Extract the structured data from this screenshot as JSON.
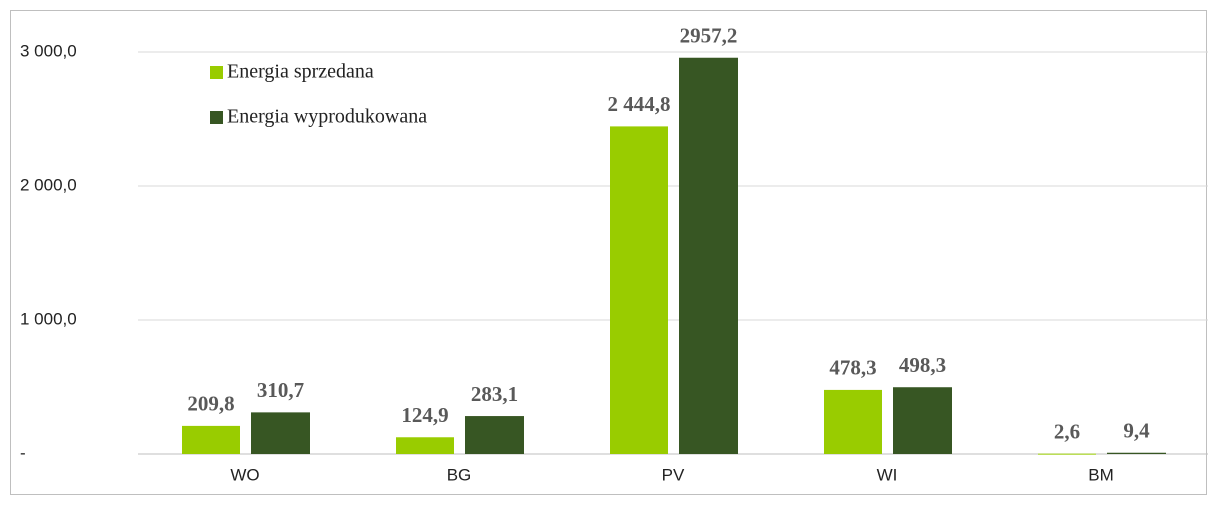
{
  "chart_data": {
    "type": "bar",
    "categories": [
      "WO",
      "BG",
      "PV",
      "WI",
      "BM"
    ],
    "series": [
      {
        "name": "Energia sprzedana",
        "color": "#99cc00",
        "values": [
          209.8,
          124.9,
          2444.8,
          478.3,
          2.6
        ],
        "value_labels": [
          "209,8",
          "124,9",
          "2 444,8",
          "478,3",
          "2,6"
        ]
      },
      {
        "name": "Energia wyprodukowana",
        "color": "#375623",
        "values": [
          310.7,
          283.1,
          2957.2,
          498.3,
          9.4
        ],
        "value_labels": [
          "310,7",
          "283,1",
          "2957,2",
          "498,3",
          "9,4"
        ]
      }
    ],
    "ylim": [
      0,
      3000
    ],
    "yticks": [
      {
        "value": 0,
        "label": "-"
      },
      {
        "value": 1000,
        "label": "1 000,0"
      },
      {
        "value": 2000,
        "label": "2 000,0"
      },
      {
        "value": 3000,
        "label": "3 000,0"
      }
    ],
    "grid": true,
    "legend": "top-left"
  }
}
